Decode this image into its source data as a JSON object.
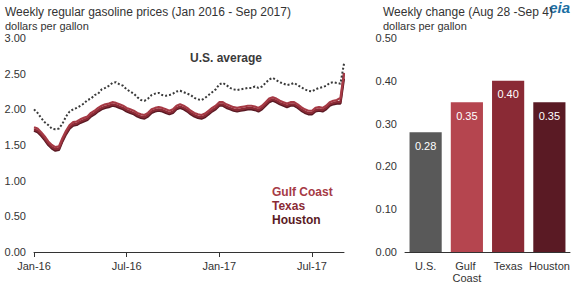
{
  "chart_data": [
    {
      "type": "line",
      "title": "Weekly regular gasoline prices (Jan 2016 - Sep 2017)",
      "subtitle": "dollars per gallon",
      "categories": [
        "Jan-16",
        null,
        null,
        null,
        null,
        null,
        null,
        null,
        null,
        null,
        null,
        null,
        null,
        null,
        null,
        null,
        null,
        null,
        null,
        null,
        null,
        null,
        null,
        null,
        null,
        null,
        "Jul-16",
        null,
        null,
        null,
        null,
        null,
        null,
        null,
        null,
        null,
        null,
        null,
        null,
        null,
        null,
        null,
        null,
        null,
        null,
        null,
        null,
        null,
        null,
        null,
        null,
        null,
        "Jan-17",
        null,
        null,
        null,
        null,
        null,
        null,
        null,
        null,
        null,
        null,
        null,
        null,
        null,
        null,
        null,
        null,
        null,
        null,
        null,
        null,
        null,
        null,
        null,
        null,
        null,
        "Jul-17",
        null,
        null,
        null,
        null,
        null,
        null,
        null,
        null,
        null
      ],
      "series": [
        {
          "name": "U.S. average",
          "color": "#3a3a3a",
          "line_style": "dotted",
          "values": [
            2.0,
            1.95,
            1.88,
            1.82,
            1.78,
            1.73,
            1.72,
            1.73,
            1.8,
            1.9,
            1.97,
            2.0,
            2.02,
            2.05,
            2.08,
            2.13,
            2.15,
            2.2,
            2.22,
            2.28,
            2.3,
            2.33,
            2.37,
            2.38,
            2.35,
            2.33,
            2.28,
            2.25,
            2.22,
            2.17,
            2.13,
            2.12,
            2.15,
            2.2,
            2.22,
            2.23,
            2.2,
            2.19,
            2.2,
            2.22,
            2.25,
            2.26,
            2.24,
            2.22,
            2.2,
            2.16,
            2.14,
            2.13,
            2.16,
            2.2,
            2.24,
            2.28,
            2.35,
            2.37,
            2.34,
            2.3,
            2.28,
            2.27,
            2.28,
            2.29,
            2.3,
            2.3,
            2.32,
            2.3,
            2.32,
            2.37,
            2.42,
            2.44,
            2.41,
            2.38,
            2.36,
            2.34,
            2.35,
            2.37,
            2.34,
            2.31,
            2.28,
            2.26,
            2.25,
            2.28,
            2.3,
            2.31,
            2.33,
            2.37,
            2.38,
            2.37,
            2.36,
            2.64
          ]
        },
        {
          "name": "Gulf Coast",
          "color": "#a63a45",
          "line_style": "solid",
          "values": [
            1.75,
            1.73,
            1.68,
            1.62,
            1.55,
            1.5,
            1.47,
            1.48,
            1.6,
            1.7,
            1.78,
            1.82,
            1.83,
            1.86,
            1.88,
            1.9,
            1.95,
            1.98,
            2.02,
            2.05,
            2.07,
            2.08,
            2.1,
            2.09,
            2.07,
            2.05,
            2.02,
            2.0,
            1.98,
            1.95,
            1.93,
            1.92,
            1.95,
            2.0,
            2.02,
            2.03,
            2.02,
            2.0,
            1.98,
            2.0,
            2.05,
            2.07,
            2.05,
            2.02,
            1.98,
            1.95,
            1.93,
            1.92,
            1.94,
            1.98,
            2.02,
            2.05,
            2.1,
            2.1,
            2.07,
            2.05,
            2.03,
            2.02,
            2.03,
            2.04,
            2.05,
            2.05,
            2.04,
            2.02,
            2.05,
            2.1,
            2.15,
            2.17,
            2.15,
            2.12,
            2.1,
            2.08,
            2.1,
            2.1,
            2.07,
            2.03,
            2.0,
            1.98,
            1.98,
            2.02,
            2.03,
            2.02,
            2.05,
            2.1,
            2.12,
            2.13,
            2.16,
            2.51
          ]
        },
        {
          "name": "Texas",
          "color": "#8a2a35",
          "line_style": "solid",
          "values": [
            1.72,
            1.7,
            1.65,
            1.59,
            1.52,
            1.47,
            1.44,
            1.45,
            1.57,
            1.67,
            1.75,
            1.79,
            1.8,
            1.83,
            1.85,
            1.87,
            1.92,
            1.95,
            1.99,
            2.02,
            2.04,
            2.05,
            2.07,
            2.06,
            2.04,
            2.02,
            1.99,
            1.97,
            1.95,
            1.92,
            1.9,
            1.89,
            1.92,
            1.97,
            1.99,
            2.0,
            1.99,
            1.97,
            1.95,
            1.97,
            2.02,
            2.04,
            2.02,
            1.99,
            1.95,
            1.92,
            1.9,
            1.89,
            1.91,
            1.95,
            1.99,
            2.02,
            2.07,
            2.07,
            2.04,
            2.02,
            2.0,
            1.99,
            2.0,
            2.01,
            2.02,
            2.02,
            2.01,
            1.99,
            2.02,
            2.07,
            2.12,
            2.14,
            2.12,
            2.09,
            2.07,
            2.05,
            2.07,
            2.07,
            2.04,
            2.0,
            1.97,
            1.95,
            1.95,
            1.99,
            2.0,
            1.99,
            2.02,
            2.07,
            2.09,
            2.1,
            2.1,
            2.5
          ]
        },
        {
          "name": "Houston",
          "color": "#5a1a24",
          "line_style": "solid",
          "values": [
            1.7,
            1.68,
            1.63,
            1.57,
            1.5,
            1.45,
            1.42,
            1.43,
            1.55,
            1.65,
            1.73,
            1.77,
            1.78,
            1.81,
            1.83,
            1.85,
            1.9,
            1.93,
            1.97,
            2.0,
            2.02,
            2.03,
            2.05,
            2.04,
            2.02,
            2.0,
            1.97,
            1.95,
            1.93,
            1.9,
            1.88,
            1.87,
            1.9,
            1.95,
            1.97,
            1.98,
            1.97,
            1.95,
            1.93,
            1.95,
            2.0,
            2.02,
            2.0,
            1.97,
            1.93,
            1.9,
            1.88,
            1.87,
            1.89,
            1.93,
            1.97,
            2.0,
            2.05,
            2.05,
            2.02,
            2.0,
            1.98,
            1.97,
            1.98,
            1.99,
            2.0,
            2.0,
            1.99,
            1.97,
            2.0,
            2.05,
            2.1,
            2.12,
            2.1,
            2.07,
            2.05,
            2.03,
            2.05,
            2.05,
            2.02,
            1.98,
            1.95,
            1.93,
            1.93,
            1.97,
            1.98,
            1.97,
            2.0,
            2.05,
            2.07,
            2.08,
            2.08,
            2.43
          ]
        }
      ],
      "ylim": [
        0,
        3
      ],
      "yticks": [
        {
          "value": 0,
          "label": "0.00"
        },
        {
          "value": 0.5,
          "label": "0.50"
        },
        {
          "value": 1,
          "label": "1.00"
        },
        {
          "value": 1.5,
          "label": "1.50"
        },
        {
          "value": 2,
          "label": "2.00"
        },
        {
          "value": 2.5,
          "label": "2.50"
        },
        {
          "value": 3,
          "label": "3.00"
        }
      ],
      "grid": false
    },
    {
      "type": "bar",
      "title": "Weekly change (Aug 28 -Sep 4)",
      "subtitle": "dollars per gallon",
      "annotation": "eia",
      "categories": [
        "U.S.",
        "Gulf Coast",
        "Texas",
        "Houston"
      ],
      "values": [
        0.28,
        0.35,
        0.4,
        0.35
      ],
      "value_labels": [
        "0.28",
        "0.35",
        "0.40",
        "0.35"
      ],
      "colors": [
        "#595959",
        "#b5454f",
        "#8a2a35",
        "#5a1a24"
      ],
      "data_labels": true,
      "ylim": [
        0,
        0.5
      ],
      "yticks": [
        {
          "value": 0,
          "label": "0.00"
        },
        {
          "value": 0.1,
          "label": "0.10"
        },
        {
          "value": 0.2,
          "label": "0.20"
        },
        {
          "value": 0.3,
          "label": "0.30"
        },
        {
          "value": 0.4,
          "label": "0.40"
        },
        {
          "value": 0.5,
          "label": "0.50"
        }
      ],
      "grid": false
    }
  ]
}
